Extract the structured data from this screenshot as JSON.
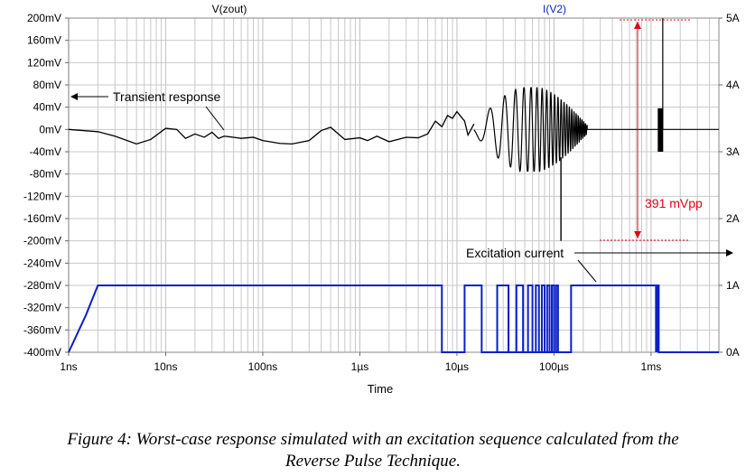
{
  "chart_data": {
    "type": "line",
    "x_scale": "log",
    "xlabel": "Time",
    "x_ticks": [
      {
        "value": 1e-09,
        "label": "1ns"
      },
      {
        "value": 1e-08,
        "label": "10ns"
      },
      {
        "value": 1e-07,
        "label": "100ns"
      },
      {
        "value": 1e-06,
        "label": "1µs"
      },
      {
        "value": 1e-05,
        "label": "10µs"
      },
      {
        "value": 0.0001,
        "label": "100µs"
      },
      {
        "value": 0.001,
        "label": "1ms"
      }
    ],
    "xlim": [
      1e-09,
      0.005
    ],
    "left_axis": {
      "title": "V(zout)",
      "unit": "mV",
      "ylim": [
        -400,
        200
      ],
      "ticks": [
        200,
        160,
        120,
        80,
        40,
        0,
        -40,
        -80,
        -120,
        -160,
        -200,
        -240,
        -280,
        -320,
        -360,
        -400
      ],
      "tick_labels": [
        "200mV",
        "160mV",
        "120mV",
        "80mV",
        "40mV",
        "0mV",
        "-40mV",
        "-80mV",
        "-120mV",
        "-160mV",
        "-200mV",
        "-240mV",
        "-280mV",
        "-320mV",
        "-360mV",
        "-400mV"
      ]
    },
    "right_axis": {
      "title": "I(V2)",
      "unit": "A",
      "ylim": [
        0,
        5
      ],
      "ticks": [
        5,
        4,
        3,
        2,
        1,
        0
      ],
      "tick_labels": [
        "5A",
        "4A",
        "3A",
        "2A",
        "1A",
        "0A"
      ]
    },
    "grid": true,
    "series": [
      {
        "name": "V(zout)",
        "axis": "left",
        "color": "#000000",
        "x": [
          1e-09,
          2e-09,
          3e-09,
          5e-09,
          7e-09,
          1e-08,
          1.3e-08,
          1.6e-08,
          2e-08,
          2.5e-08,
          3e-08,
          3.5e-08,
          4e-08,
          5e-08,
          6e-08,
          8e-08,
          1e-07,
          1.5e-07,
          2e-07,
          3e-07,
          4e-07,
          5e-07,
          7e-07,
          1e-06,
          1.2e-06,
          1.5e-06,
          2e-06,
          3e-06,
          4e-06,
          5e-06,
          6e-06,
          7e-06,
          8e-06,
          9e-06,
          1e-05,
          1.2e-05,
          1.3e-05,
          1.5e-05
        ],
        "values": [
          0,
          -4,
          -12,
          -26,
          -18,
          2,
          0,
          -16,
          -8,
          -14,
          -5,
          -16,
          -12,
          -14,
          -16,
          -14,
          -20,
          -25,
          -26,
          -20,
          -2,
          4,
          -18,
          -15,
          -20,
          -12,
          -22,
          -14,
          -15,
          -8,
          15,
          5,
          25,
          20,
          32,
          15,
          -10,
          10
        ]
      },
      {
        "name": "I(V2)",
        "axis": "right",
        "color": "#0a20c8",
        "x": [
          1e-09,
          1.5e-09,
          2e-09,
          5e-06,
          7e-06,
          1.2e-05,
          1.8e-05,
          2.6e-05,
          3.4e-05,
          0.00015,
          0.0008,
          0.0012,
          0.005
        ],
        "values": [
          0,
          0.55,
          1,
          1,
          0,
          1,
          0,
          1,
          0,
          1,
          1,
          0,
          0
        ]
      }
    ],
    "annotations": [
      {
        "text": "Transient response",
        "position": "left of the V(zout) trace, arrow pointing left to the left axis"
      },
      {
        "text": "Excitation current",
        "position": "above the I(V2) pulse train, arrow pointing right to the right axis"
      },
      {
        "text": "391 mVpp",
        "color": "#e0001b",
        "position": "right side, red dimension line spanning the late-time oscillation"
      }
    ]
  },
  "caption": {
    "line1": "Figure 4: Worst-case response simulated with an excitation sequence calculated from the",
    "line2": "Reverse Pulse Technique."
  }
}
